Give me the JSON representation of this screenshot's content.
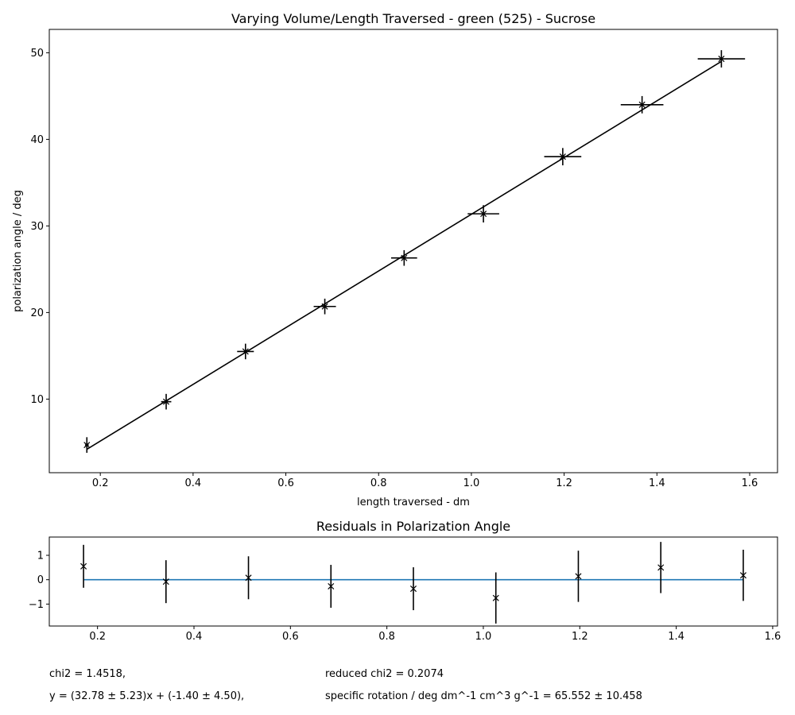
{
  "chart_data": [
    {
      "type": "scatter",
      "title": "Varying Volume/Length Traversed - green (525) - Sucrose",
      "xlabel": "length traversed - dm",
      "ylabel": "polarization angle / deg",
      "xlim": [
        0.09,
        1.66
      ],
      "ylim": [
        1.5,
        52.7
      ],
      "xticks": [
        0.2,
        0.4,
        0.6,
        0.8,
        1.0,
        1.2,
        1.4,
        1.6
      ],
      "xtick_labels": [
        "0.2",
        "0.4",
        "0.6",
        "0.8",
        "1.0",
        "1.2",
        "1.4",
        "1.6"
      ],
      "yticks": [
        10,
        20,
        30,
        40,
        50
      ],
      "ytick_labels": [
        "10",
        "20",
        "30",
        "40",
        "50"
      ],
      "grid": false,
      "series": [
        {
          "marker": "x",
          "color": "#000000",
          "x": [
            0.171,
            0.342,
            0.513,
            0.684,
            0.855,
            1.026,
            1.197,
            1.368,
            1.539
          ],
          "y": [
            4.7,
            9.7,
            15.5,
            20.7,
            26.3,
            31.4,
            38.0,
            44.0,
            49.3
          ],
          "xerr": [
            0.004,
            0.011,
            0.018,
            0.024,
            0.028,
            0.034,
            0.04,
            0.046,
            0.051
          ],
          "yerr": [
            0.9,
            0.9,
            0.9,
            0.9,
            0.9,
            1.0,
            1.0,
            1.0,
            1.0
          ]
        }
      ],
      "fit_line": {
        "color": "#000000",
        "x": [
          0.171,
          1.539
        ],
        "y": [
          4.2,
          49.0
        ]
      }
    },
    {
      "type": "scatter",
      "title": "Residuals in Polarization Angle",
      "xlabel": "",
      "ylabel": "",
      "xlim": [
        0.1,
        1.61
      ],
      "ylim": [
        -1.9,
        1.75
      ],
      "xticks": [
        0.2,
        0.4,
        0.6,
        0.8,
        1.0,
        1.2,
        1.4,
        1.6
      ],
      "xtick_labels": [
        "0.2",
        "0.4",
        "0.6",
        "0.8",
        "1.0",
        "1.2",
        "1.4",
        "1.6"
      ],
      "yticks": [
        1,
        0,
        -1
      ],
      "ytick_labels": [
        "1",
        "0",
        "−1"
      ],
      "grid": false,
      "series": [
        {
          "marker": "x",
          "color": "#000000",
          "x": [
            0.171,
            0.342,
            0.513,
            0.684,
            0.855,
            1.026,
            1.197,
            1.368,
            1.539
          ],
          "y": [
            0.55,
            -0.08,
            0.08,
            -0.27,
            -0.37,
            -0.75,
            0.14,
            0.5,
            0.18
          ],
          "yerr": [
            0.88,
            0.88,
            0.88,
            0.88,
            0.88,
            1.05,
            1.05,
            1.05,
            1.05
          ]
        }
      ],
      "zero_line": {
        "color": "#1f77b4",
        "x": [
          0.171,
          1.539
        ],
        "y": 0
      }
    }
  ],
  "stats": {
    "chi2": "chi2 = 1.4518,",
    "reduced_chi2": "reduced chi2 = 0.2074",
    "fit_equation": "y = (32.78 ± 5.23)x + (-1.40 ± 4.50),",
    "specific_rotation": "specific rotation / deg dm^-1 cm^3 g^-1 = 65.552 ± 10.458"
  }
}
